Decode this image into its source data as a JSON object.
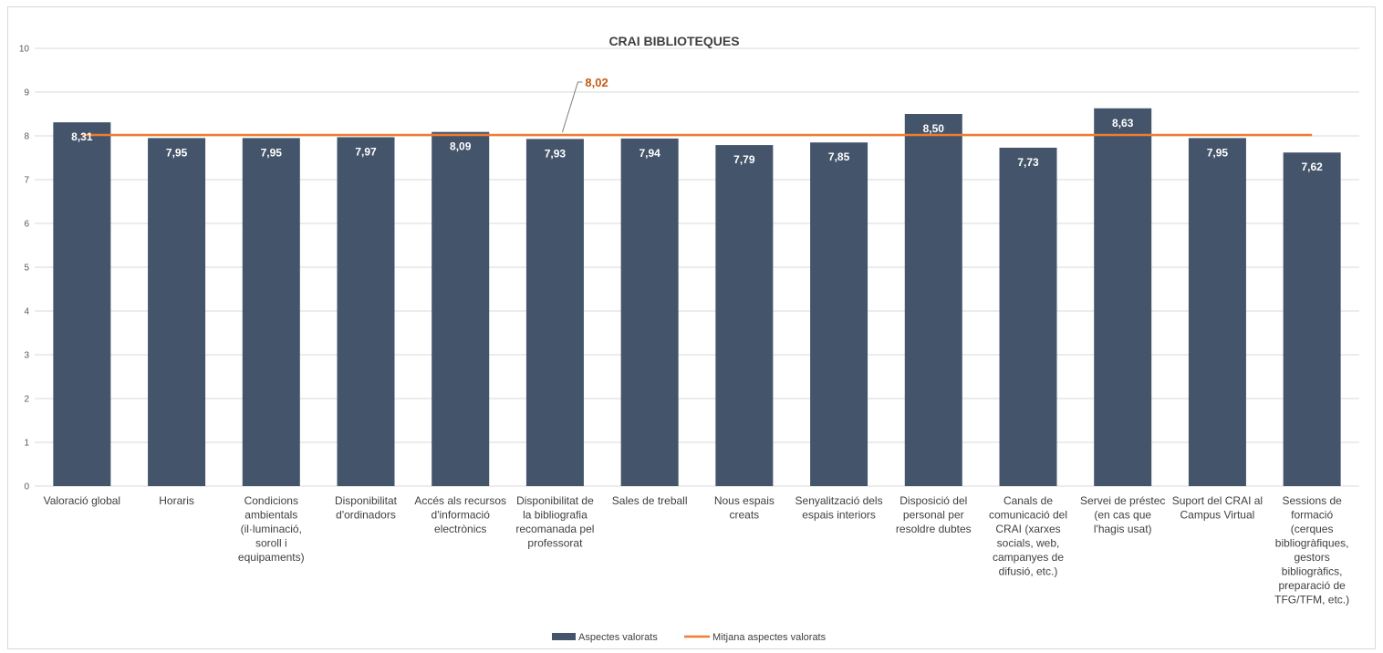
{
  "chart_data": {
    "type": "bar",
    "title": "CRAI BIBLIOTEQUES",
    "ylim": [
      0,
      10
    ],
    "yticks": [
      "0",
      "1",
      "2",
      "3",
      "4",
      "5",
      "6",
      "7",
      "8",
      "9",
      "10"
    ],
    "grid": true,
    "legend_position": "bottom",
    "categories": [
      [
        "Valoració global"
      ],
      [
        "Horaris"
      ],
      [
        "Condicions",
        "ambientals",
        "(il·luminació,",
        "soroll i",
        "equipaments)"
      ],
      [
        "Disponibilitat",
        "d'ordinadors"
      ],
      [
        "Accés als recursos",
        "d'informació",
        "electrònics"
      ],
      [
        "Disponibilitat de",
        "la bibliografia",
        "recomanada pel",
        "professorat"
      ],
      [
        "Sales de treball"
      ],
      [
        "Nous espais",
        "creats"
      ],
      [
        "Senyalització dels",
        "espais interiors"
      ],
      [
        "Disposició del",
        "personal per",
        "resoldre dubtes"
      ],
      [
        "Canals de",
        "comunicació del",
        "CRAI (xarxes",
        "socials, web,",
        "campanyes de",
        "difusió, etc.)"
      ],
      [
        "Servei de préstec",
        "(en cas que",
        "l'hagis usat)"
      ],
      [
        "Suport del CRAI al",
        "Campus Virtual"
      ],
      [
        "Sessions de",
        "formació",
        "(cerques",
        "bibliogràfiques,",
        "gestors",
        "bibliogràfics,",
        "preparació de",
        "TFG/TFM, etc.)"
      ]
    ],
    "series": [
      {
        "name": "Aspectes valorats",
        "type": "bar",
        "color": "#44546a",
        "values": [
          8.31,
          7.95,
          7.95,
          7.97,
          8.09,
          7.93,
          7.94,
          7.79,
          7.85,
          8.5,
          7.73,
          8.63,
          7.95,
          7.62
        ],
        "labels": [
          "8,31",
          "7,95",
          "7,95",
          "7,97",
          "8,09",
          "7,93",
          "7,94",
          "7,79",
          "7,85",
          "8,50",
          "7,73",
          "8,63",
          "7,95",
          "7,62"
        ]
      },
      {
        "name": "Mitjana aspectes valorats",
        "type": "line",
        "color": "#ed7d31",
        "value": 8.02,
        "label": "8,02"
      }
    ]
  }
}
